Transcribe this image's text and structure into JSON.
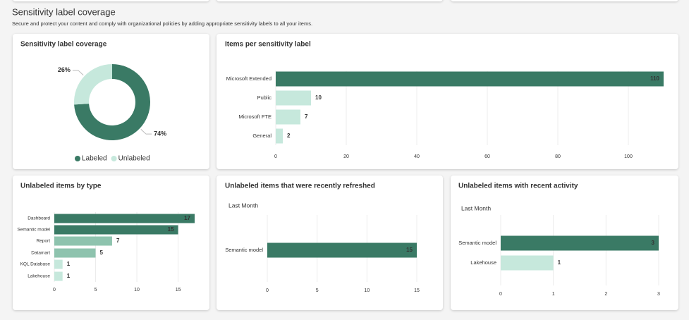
{
  "section": {
    "title": "Sensitivity label coverage",
    "description": "Secure and protect your content and comply with organizational policies by adding appropriate sensitivity labels to all your items."
  },
  "chart_data": [
    {
      "type": "donut",
      "title": "Sensitivity label coverage",
      "categories": [
        "Labeled",
        "Unlabeled"
      ],
      "values": [
        74,
        26
      ],
      "value_labels": [
        "74%",
        "26%"
      ],
      "colors": [
        "#3a7a65",
        "#c6e8dc"
      ],
      "legend": "bottom"
    },
    {
      "type": "hbar",
      "title": "Items per sensitivity label",
      "categories": [
        "Microsoft Extended",
        "Public",
        "Microsoft FTE",
        "General"
      ],
      "values": [
        110,
        10,
        7,
        2
      ],
      "colors": [
        "#3a7a65",
        "#c6e8dc",
        "#c6e8dc",
        "#c6e8dc"
      ],
      "xlim": [
        0,
        110
      ],
      "xticks": [
        0,
        20,
        40,
        60,
        80,
        100
      ],
      "grid": true
    },
    {
      "type": "hbar",
      "title": "Unlabeled items by type",
      "categories": [
        "Dashboard",
        "Semantic model",
        "Report",
        "Datamart",
        "KQL Database",
        "Lakehouse"
      ],
      "values": [
        17,
        15,
        7,
        5,
        1,
        1
      ],
      "colors": [
        "#3a7a65",
        "#3a7a65",
        "#8ec3ae",
        "#8ec3ae",
        "#c6e8dc",
        "#c6e8dc"
      ],
      "xlim": [
        0,
        17
      ],
      "xticks": [
        0,
        5,
        10,
        15
      ],
      "grid": true
    },
    {
      "type": "hbar",
      "title": "Unlabeled items that were recently refreshed",
      "subtitle": "Last Month",
      "categories": [
        "Semantic model"
      ],
      "values": [
        15
      ],
      "colors": [
        "#3a7a65"
      ],
      "xlim": [
        0,
        15
      ],
      "xticks": [
        0,
        5,
        10,
        15
      ],
      "grid": true
    },
    {
      "type": "hbar",
      "title": "Unlabeled items with recent activity",
      "subtitle": "Last Month",
      "categories": [
        "Semantic model",
        "Lakehouse"
      ],
      "values": [
        3,
        1
      ],
      "colors": [
        "#3a7a65",
        "#c6e8dc"
      ],
      "xlim": [
        0,
        3
      ],
      "xticks": [
        0,
        1,
        2,
        3
      ],
      "grid": true
    }
  ]
}
